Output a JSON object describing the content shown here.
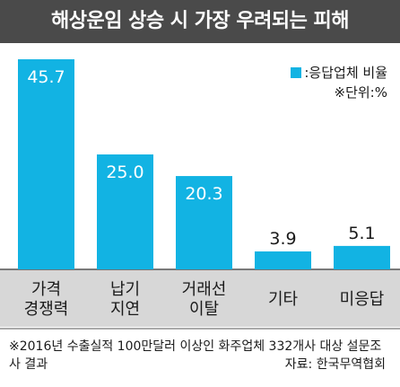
{
  "title": "해상운임 상승 시 가장 우려되는 피해",
  "legend": {
    "series_label": ":응답업체 비율",
    "unit_note": "※단위:%"
  },
  "footnote": {
    "survey": "※2016년 수출실적 100만달러 이상인 화주업체 332개사 대상 설문조사 결과",
    "source": "자료: 한국무역협회"
  },
  "colors": {
    "bar": "#12b3e3",
    "title_bg": "#4a4a4a",
    "label_band": "#d7d7d7",
    "rule": "#555555"
  },
  "chart_data": {
    "type": "bar",
    "title": "해상운임 상승 시 가장 우려되는 피해",
    "unit": "%",
    "categories": [
      [
        "가격",
        "경쟁력"
      ],
      [
        "납기",
        "지연"
      ],
      [
        "거래선",
        "이탈"
      ],
      [
        "기타"
      ],
      [
        "미응답"
      ]
    ],
    "series": [
      {
        "name": "응답업체 비율",
        "values": [
          45.7,
          25.0,
          20.3,
          3.9,
          5.1
        ]
      }
    ],
    "value_labels": [
      "45.7",
      "25.0",
      "20.3",
      "3.9",
      "5.1"
    ],
    "ylim": [
      0,
      50
    ],
    "grid": false,
    "legend_position": "top-right"
  }
}
